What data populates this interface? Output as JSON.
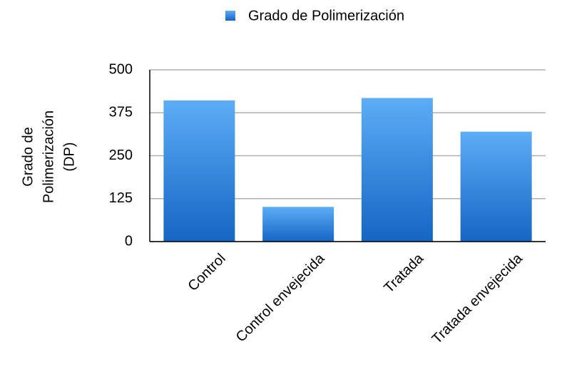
{
  "chart_data": {
    "type": "bar",
    "legend": "Grado de Polimerización",
    "ylabel": [
      "Grado de",
      "Polimerización",
      "(DP)"
    ],
    "categories": [
      "Control",
      "Control envejecida",
      "Tratada",
      "Tratada envejecida"
    ],
    "values": [
      411,
      101,
      418,
      320
    ],
    "ylim": [
      0,
      500
    ],
    "yticks": [
      0,
      125,
      250,
      375,
      500
    ],
    "grid": true
  }
}
